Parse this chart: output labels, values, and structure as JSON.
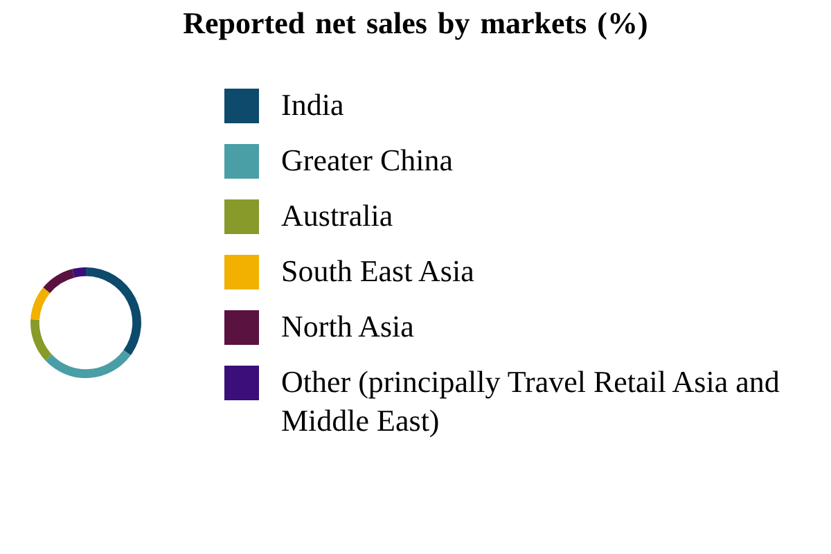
{
  "chart_data": {
    "type": "donut",
    "title": "Reported net sales by markets (%)",
    "categories": [
      "India",
      "Greater China",
      "Australia",
      "South East Asia",
      "North Asia",
      "Other (principally Travel Retail Asia and Middle East)"
    ],
    "values": [
      35,
      28,
      13,
      10,
      10,
      4
    ],
    "colors": [
      "#0d4a6b",
      "#4a9ea6",
      "#879a2a",
      "#f2b100",
      "#5a1240",
      "#3a0f7a"
    ],
    "legend": "right"
  }
}
